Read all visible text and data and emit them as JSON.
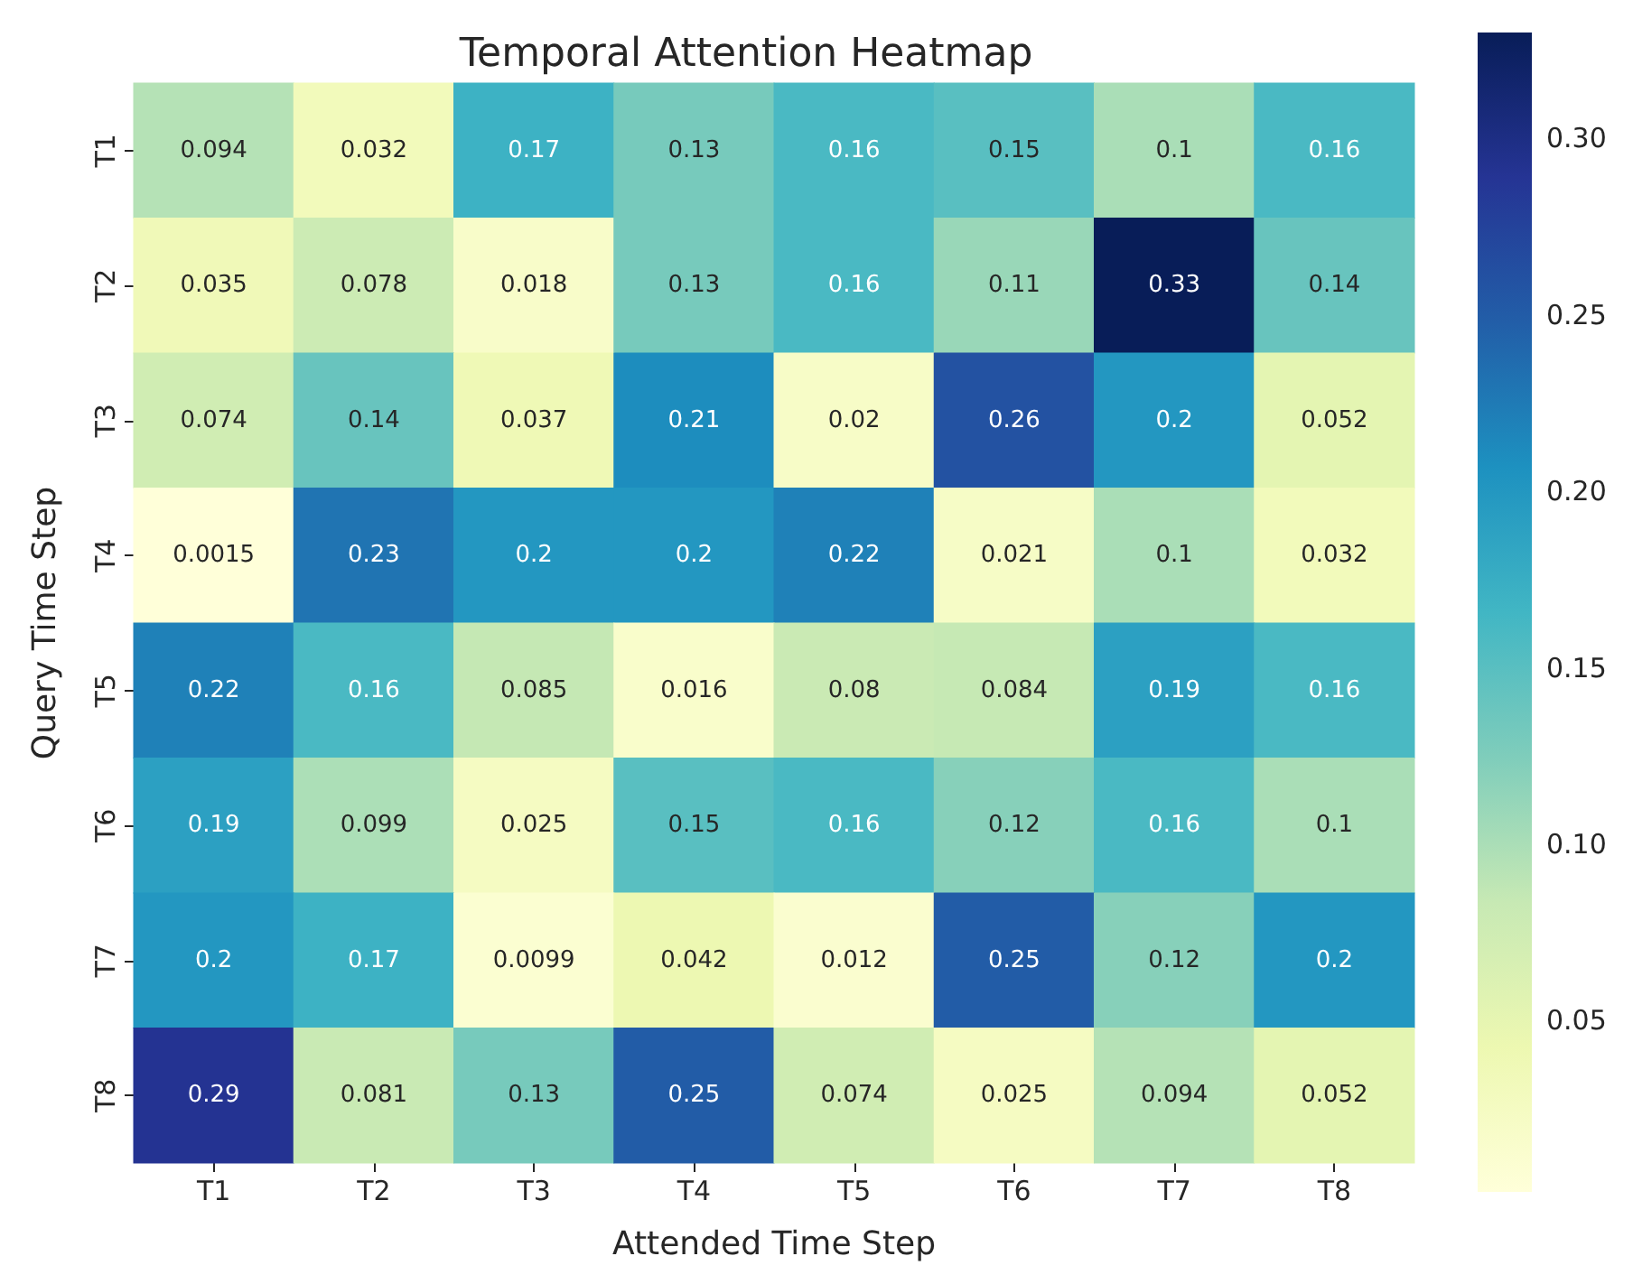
{
  "chart_data": {
    "type": "heatmap",
    "title": "Temporal Attention Heatmap",
    "xlabel": "Attended Time Step",
    "ylabel": "Query Time Step",
    "categories": [
      "T1",
      "T2",
      "T3",
      "T4",
      "T5",
      "T6",
      "T7",
      "T8"
    ],
    "y_categories": [
      "T1",
      "T2",
      "T3",
      "T4",
      "T5",
      "T6",
      "T7",
      "T8"
    ],
    "cells": [
      [
        0.094,
        0.032,
        0.17,
        0.13,
        0.16,
        0.15,
        0.1,
        0.16
      ],
      [
        0.035,
        0.078,
        0.018,
        0.13,
        0.16,
        0.11,
        0.33,
        0.14
      ],
      [
        0.074,
        0.14,
        0.037,
        0.21,
        0.02,
        0.26,
        0.2,
        0.052
      ],
      [
        0.0015,
        0.23,
        0.2,
        0.2,
        0.22,
        0.021,
        0.1,
        0.032
      ],
      [
        0.22,
        0.16,
        0.085,
        0.016,
        0.08,
        0.084,
        0.19,
        0.16
      ],
      [
        0.19,
        0.099,
        0.025,
        0.15,
        0.16,
        0.12,
        0.16,
        0.1
      ],
      [
        0.2,
        0.17,
        0.0099,
        0.042,
        0.012,
        0.25,
        0.12,
        0.2
      ],
      [
        0.29,
        0.081,
        0.13,
        0.25,
        0.074,
        0.025,
        0.094,
        0.052
      ]
    ],
    "clim": [
      0.0015,
      0.33
    ],
    "cticks": [
      {
        "value": 0.05,
        "label": "0.05"
      },
      {
        "value": 0.1,
        "label": "0.10"
      },
      {
        "value": 0.15,
        "label": "0.15"
      },
      {
        "value": 0.2,
        "label": "0.20"
      },
      {
        "value": 0.25,
        "label": "0.25"
      },
      {
        "value": 0.3,
        "label": "0.30"
      }
    ],
    "data_labels": true
  }
}
